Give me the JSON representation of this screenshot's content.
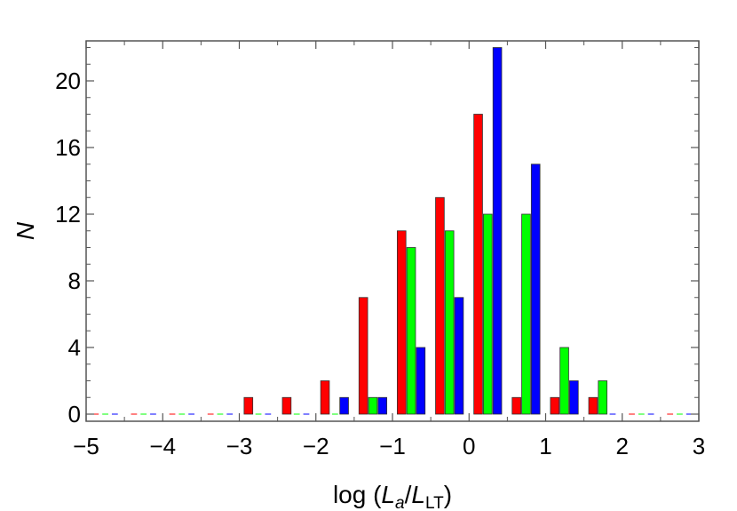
{
  "chart_data": {
    "type": "bar",
    "title": "",
    "xlabel": {
      "prefix": "log (",
      "main1": "L",
      "sub1": "a",
      "slash": "/",
      "main2": "L",
      "sub2": "LT",
      "suffix": ")"
    },
    "ylabel": "N",
    "xlim": [
      -5,
      3
    ],
    "ylim": [
      0,
      22
    ],
    "xticks": [
      -5,
      -4,
      -3,
      -2,
      -1,
      0,
      1,
      2,
      3
    ],
    "xtick_labels": [
      "−5",
      "−4",
      "−3",
      "−2",
      "−1",
      "0",
      "1",
      "2",
      "3"
    ],
    "yticks": [
      0,
      4,
      8,
      12,
      16,
      20
    ],
    "ytick_labels": [
      "0",
      "4",
      "8",
      "12",
      "16",
      "20"
    ],
    "bin_centers": [
      -4.75,
      -4.25,
      -3.75,
      -3.25,
      -2.75,
      -2.25,
      -1.75,
      -1.25,
      -0.75,
      -0.25,
      0.25,
      0.75,
      1.25,
      1.75,
      2.25,
      2.75
    ],
    "series": [
      {
        "color": "#ff0000",
        "values": [
          0,
          0,
          0,
          0,
          1,
          1,
          2,
          7,
          11,
          13,
          18,
          1,
          1,
          1,
          0,
          0
        ]
      },
      {
        "color": "#00ff00",
        "values": [
          0,
          0,
          0,
          0,
          0,
          0,
          0,
          1,
          10,
          11,
          12,
          12,
          4,
          2,
          0,
          0
        ]
      },
      {
        "color": "#0000ff",
        "values": [
          0,
          0,
          0,
          0,
          0,
          0,
          1,
          1,
          4,
          7,
          22,
          15,
          2,
          0,
          0,
          0
        ]
      }
    ],
    "grid": false,
    "legend": "none"
  }
}
